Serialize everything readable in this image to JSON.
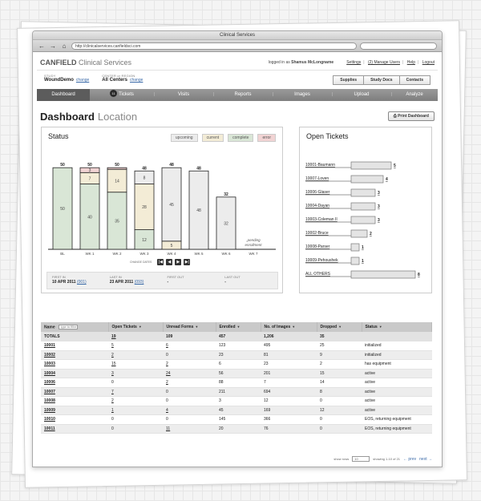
{
  "browser": {
    "title": "Clinical Services",
    "url": "http://clinicalservices.canfieldsci.com"
  },
  "header": {
    "brand_bold": "CANFIELD",
    "brand_rest": "Clinical Services",
    "logged_prefix": "logged in as",
    "user": "Shamus McLongname",
    "links": [
      "Settings",
      "(2) Manage Users",
      "Help",
      "Logout"
    ]
  },
  "study": {
    "study_label": "STUDY",
    "study_value": "WoundDemo",
    "study_change": "change",
    "center_label": "CENTER or REGION",
    "center_value": "All Centers",
    "center_change": "change",
    "buttons": [
      "Supplies",
      "Study Docs",
      "Contacts"
    ]
  },
  "nav": {
    "items": [
      {
        "label": "Dashboard",
        "active": true
      },
      {
        "label": "Tickets",
        "badge": "11"
      },
      {
        "label": "Visits"
      },
      {
        "label": "Reports"
      },
      {
        "label": "Images"
      },
      {
        "label": "Upload"
      },
      {
        "label": "Analyze"
      }
    ]
  },
  "page": {
    "title": "Dashboard",
    "subtitle": "Location",
    "print_label": "Print Dashboard"
  },
  "status": {
    "title": "Status",
    "legend": [
      {
        "label": "upcoming",
        "color": "#ececec"
      },
      {
        "label": "current",
        "color": "#f3ecd6"
      },
      {
        "label": "complete",
        "color": "#d9e6d6"
      },
      {
        "label": "error",
        "color": "#f1d3d3"
      }
    ],
    "change_dates_label": "CHANGE DATES",
    "pager_icons": [
      "|◀",
      "◀",
      "▶",
      "▶|"
    ],
    "dates": [
      {
        "label": "FIRST IN",
        "value": "10 APR 2011",
        "link": "(001)"
      },
      {
        "label": "LAST IN",
        "value": "23 APR 2011",
        "link": "(093)"
      },
      {
        "label": "FIRST OUT",
        "value": "-",
        "link": ""
      },
      {
        "label": "LAST OUT",
        "value": "-",
        "link": ""
      }
    ]
  },
  "chart_data": [
    {
      "type": "bar",
      "title": "Status",
      "categories": [
        "BL",
        "WK 1",
        "WK 2",
        "WK 3",
        "WK 4",
        "WK 5",
        "WK 6",
        "WK 7"
      ],
      "totals": [
        50,
        50,
        50,
        48,
        48,
        48,
        32,
        null
      ],
      "series": [
        {
          "name": "complete",
          "color": "#d9e6d6",
          "values": [
            50,
            40,
            35,
            12,
            0,
            0,
            0,
            0
          ]
        },
        {
          "name": "current",
          "color": "#f3ecd6",
          "values": [
            0,
            7,
            14,
            28,
            5,
            0,
            0,
            0
          ]
        },
        {
          "name": "upcoming",
          "color": "#ececec",
          "values": [
            0,
            0,
            0,
            8,
            45,
            48,
            32,
            0
          ]
        },
        {
          "name": "error",
          "color": "#f1d3d3",
          "values": [
            0,
            3,
            1,
            0,
            0,
            0,
            0,
            0
          ]
        }
      ],
      "annotation": "pending enrollment",
      "ylim": [
        0,
        55
      ]
    },
    {
      "type": "bar",
      "title": "Open Tickets",
      "orientation": "horizontal",
      "categories": [
        "10001-Baumann",
        "10007-Loven",
        "10006-Glaser",
        "10004-Dayan",
        "10003-Coleman II",
        "10002-Bruce",
        "10008-Parser",
        "10009-Pehoushek",
        "ALL OTHERS"
      ],
      "values": [
        5,
        4,
        3,
        3,
        3,
        2,
        1,
        1,
        8
      ],
      "xlim": [
        0,
        8
      ]
    }
  ],
  "tickets": {
    "title": "Open Tickets"
  },
  "table": {
    "filter_placeholder": "type to filter",
    "columns": [
      "Name",
      "Open Tickets",
      "Unread Forms",
      "Enrolled",
      "No. of Images",
      "Dropped",
      "Status"
    ],
    "totals": [
      "TOTALS",
      "19",
      "109",
      "457",
      "1,206",
      "35",
      ""
    ],
    "rows": [
      [
        "10001",
        "5",
        "6",
        "123",
        "495",
        "25",
        "initialized"
      ],
      [
        "10002",
        "2",
        "0",
        "23",
        "81",
        "9",
        "initialized"
      ],
      [
        "10003",
        "15",
        "2",
        "6",
        "23",
        "2",
        "has equipment"
      ],
      [
        "10004",
        "3",
        "24",
        "56",
        "201",
        "15",
        "active"
      ],
      [
        "10006",
        "0",
        "2",
        "88",
        "7",
        "14",
        "active"
      ],
      [
        "10007",
        "7",
        "0",
        "211",
        "694",
        "8",
        "active"
      ],
      [
        "10008",
        "2",
        "0",
        "3",
        "12",
        "0",
        "active"
      ],
      [
        "10009",
        "1",
        "4",
        "45",
        "169",
        "12",
        "active"
      ],
      [
        "10010",
        "0",
        "0",
        "145",
        "366",
        "0",
        "EOS, returning equipment"
      ],
      [
        "10011",
        "0",
        "11",
        "20",
        "76",
        "0",
        "EOS, returning equipment"
      ]
    ],
    "pager": {
      "show_rows_label": "show rows",
      "show_rows_value": "10",
      "showing": "showing 1-10 of 21",
      "prev": "← prev",
      "next": "next →"
    }
  }
}
